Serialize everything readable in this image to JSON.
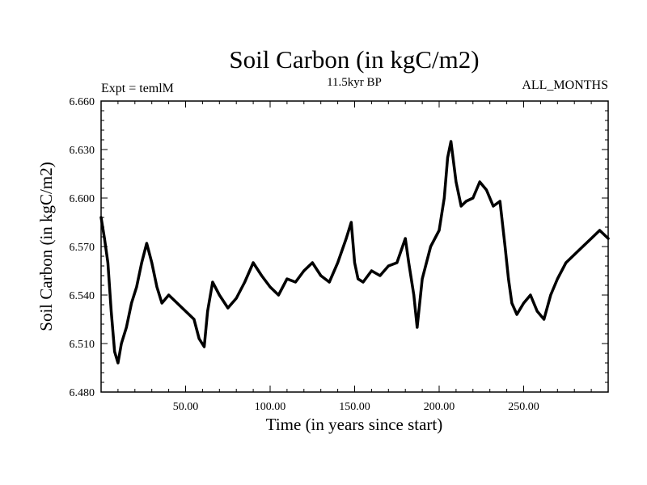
{
  "chart_data": {
    "type": "line",
    "title": "Soil Carbon (in kgC/m2)",
    "subtitle": "11.5kyr BP",
    "left_note": "Expt = temlM",
    "right_note": "ALL_MONTHS",
    "xlabel": "Time (in years since start)",
    "ylabel": "Soil Carbon (in kgC/m2)",
    "xlim": [
      0,
      300
    ],
    "ylim": [
      6.48,
      6.66
    ],
    "xticks": [
      50,
      100,
      150,
      200,
      250
    ],
    "xtick_labels": [
      "50.00",
      "100.00",
      "150.00",
      "200.00",
      "250.00"
    ],
    "yticks": [
      6.48,
      6.51,
      6.54,
      6.57,
      6.6,
      6.63,
      6.66
    ],
    "ytick_labels": [
      "6.480",
      "6.510",
      "6.540",
      "6.570",
      "6.600",
      "6.630",
      "6.660"
    ],
    "grid": false,
    "color": "#000000",
    "series": [
      {
        "name": "Soil Carbon",
        "x": [
          0,
          2,
          4,
          6,
          8,
          10,
          12,
          15,
          18,
          21,
          24,
          27,
          30,
          33,
          36,
          40,
          45,
          50,
          55,
          58,
          61,
          63,
          66,
          70,
          75,
          80,
          85,
          90,
          95,
          100,
          105,
          110,
          115,
          120,
          125,
          130,
          135,
          140,
          145,
          148,
          150,
          152,
          155,
          160,
          165,
          170,
          175,
          180,
          182,
          185,
          187,
          190,
          195,
          200,
          203,
          205,
          207,
          210,
          213,
          216,
          220,
          224,
          228,
          232,
          236,
          239,
          241,
          243,
          246,
          250,
          254,
          258,
          262,
          266,
          270,
          275,
          280,
          285,
          290,
          295,
          300
        ],
        "values": [
          6.588,
          6.575,
          6.56,
          6.53,
          6.505,
          6.498,
          6.51,
          6.52,
          6.535,
          6.545,
          6.56,
          6.572,
          6.56,
          6.545,
          6.535,
          6.54,
          6.535,
          6.53,
          6.525,
          6.513,
          6.508,
          6.53,
          6.548,
          6.54,
          6.532,
          6.538,
          6.548,
          6.56,
          6.552,
          6.545,
          6.54,
          6.55,
          6.548,
          6.555,
          6.56,
          6.552,
          6.548,
          6.56,
          6.575,
          6.585,
          6.56,
          6.55,
          6.548,
          6.555,
          6.552,
          6.558,
          6.56,
          6.575,
          6.56,
          6.54,
          6.52,
          6.55,
          6.57,
          6.58,
          6.6,
          6.625,
          6.635,
          6.61,
          6.595,
          6.598,
          6.6,
          6.61,
          6.605,
          6.595,
          6.598,
          6.57,
          6.55,
          6.535,
          6.528,
          6.535,
          6.54,
          6.53,
          6.525,
          6.54,
          6.55,
          6.56,
          6.565,
          6.57,
          6.575,
          6.58,
          6.575
        ]
      }
    ]
  }
}
